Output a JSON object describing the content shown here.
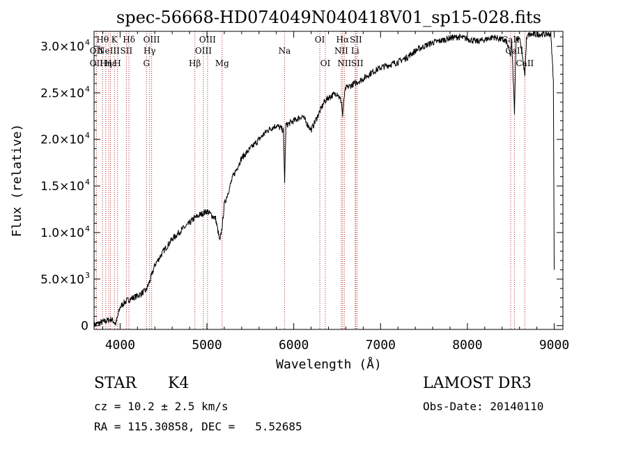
{
  "chart_data": {
    "type": "line",
    "title": "spec-56668-HD074049N040418V01_sp15-028.fits",
    "xlabel": "Wavelength (Å)",
    "ylabel": "Flux (relative)",
    "xlim": [
      3700,
      9100
    ],
    "ylim": [
      -400,
      31600
    ],
    "x_ticks": [
      {
        "value": 4000,
        "label": "4000"
      },
      {
        "value": 5000,
        "label": "5000"
      },
      {
        "value": 6000,
        "label": "6000"
      },
      {
        "value": 7000,
        "label": "7000"
      },
      {
        "value": 8000,
        "label": "8000"
      },
      {
        "value": 9000,
        "label": "9000"
      }
    ],
    "y_ticks": [
      {
        "value": 0,
        "mant": "0",
        "exp": ""
      },
      {
        "value": 5000,
        "mant": "5.0×10",
        "exp": "3"
      },
      {
        "value": 10000,
        "mant": "1.0×10",
        "exp": "4"
      },
      {
        "value": 15000,
        "mant": "1.5×10",
        "exp": "4"
      },
      {
        "value": 20000,
        "mant": "2.0×10",
        "exp": "4"
      },
      {
        "value": 25000,
        "mant": "2.5×10",
        "exp": "4"
      },
      {
        "value": 30000,
        "mant": "3.0×10",
        "exp": "4"
      }
    ],
    "series": [
      {
        "name": "spectrum",
        "x": [
          3700,
          3800,
          3900,
          3950,
          4000,
          4050,
          4100,
          4200,
          4300,
          4350,
          4400,
          4500,
          4600,
          4700,
          4800,
          4850,
          4900,
          5000,
          5100,
          5150,
          5180,
          5200,
          5300,
          5400,
          5500,
          5600,
          5700,
          5800,
          5880,
          5895,
          5910,
          6000,
          6100,
          6200,
          6300,
          6350,
          6400,
          6500,
          6550,
          6563,
          6580,
          6600,
          6700,
          6800,
          6900,
          7000,
          7100,
          7200,
          7300,
          7400,
          7500,
          7600,
          7700,
          7800,
          7900,
          8000,
          8100,
          8200,
          8300,
          8400,
          8450,
          8498,
          8510,
          8542,
          8560,
          8600,
          8662,
          8680,
          8700,
          8800,
          8900,
          8960,
          8990,
          9000
        ],
        "y": [
          100,
          400,
          700,
          200,
          2000,
          2500,
          2800,
          3200,
          3800,
          5000,
          6500,
          8000,
          9300,
          10200,
          11000,
          11500,
          11800,
          12300,
          11500,
          9000,
          11000,
          13000,
          16000,
          18000,
          19000,
          20000,
          21000,
          21500,
          21000,
          15500,
          21500,
          22000,
          22500,
          21000,
          23000,
          24000,
          24500,
          25000,
          24000,
          22500,
          24500,
          25500,
          26000,
          26500,
          27200,
          27700,
          28000,
          28300,
          28800,
          29500,
          30000,
          30400,
          30600,
          30900,
          31000,
          30800,
          30500,
          30700,
          31000,
          30700,
          30500,
          29000,
          30500,
          23000,
          30700,
          31000,
          27000,
          30700,
          31200,
          31300,
          31300,
          31300,
          26500,
          6000
        ]
      }
    ],
    "lines": [
      {
        "wave": 3727,
        "labels": [
          {
            "text": "OII",
            "row": 1
          },
          {
            "text": "OII",
            "row": 2
          }
        ]
      },
      {
        "wave": 3798,
        "labels": [
          {
            "text": "Hθ",
            "row": 0
          }
        ]
      },
      {
        "wave": 3835,
        "labels": [
          {
            "text": "Hη",
            "row": 2
          }
        ]
      },
      {
        "wave": 3869,
        "labels": [
          {
            "text": "NeIII",
            "row": 1
          }
        ]
      },
      {
        "wave": 3889,
        "labels": [
          {
            "text": "Hε",
            "row": 2
          }
        ]
      },
      {
        "wave": 3934,
        "labels": [
          {
            "text": "K",
            "row": 0
          }
        ]
      },
      {
        "wave": 3970,
        "labels": [
          {
            "text": "H",
            "row": 2
          }
        ]
      },
      {
        "wave": 4072,
        "labels": [
          {
            "text": "SII",
            "row": 1
          }
        ]
      },
      {
        "wave": 4102,
        "labels": [
          {
            "text": "Hδ",
            "row": 0
          }
        ]
      },
      {
        "wave": 4304,
        "labels": [
          {
            "text": "G",
            "row": 2
          }
        ]
      },
      {
        "wave": 4340,
        "labels": [
          {
            "text": "Hγ",
            "row": 1
          }
        ]
      },
      {
        "wave": 4363,
        "labels": [
          {
            "text": "OIII",
            "row": 0
          }
        ]
      },
      {
        "wave": 4861,
        "labels": [
          {
            "text": "Hβ",
            "row": 2
          }
        ]
      },
      {
        "wave": 4959,
        "labels": [
          {
            "text": "OIII",
            "row": 1
          }
        ]
      },
      {
        "wave": 5007,
        "labels": [
          {
            "text": "OIII",
            "row": 0
          }
        ]
      },
      {
        "wave": 5175,
        "labels": [
          {
            "text": "Mg",
            "row": 2
          }
        ]
      },
      {
        "wave": 5894,
        "labels": [
          {
            "text": "Na",
            "row": 1
          }
        ]
      },
      {
        "wave": 6300,
        "labels": [
          {
            "text": "OI",
            "row": 0
          }
        ]
      },
      {
        "wave": 6364,
        "labels": [
          {
            "text": "OI",
            "row": 2
          }
        ]
      },
      {
        "wave": 6548,
        "labels": [
          {
            "text": "NII",
            "row": 1
          }
        ]
      },
      {
        "wave": 6563,
        "labels": [
          {
            "text": "Hα",
            "row": 0
          }
        ]
      },
      {
        "wave": 6583,
        "labels": [
          {
            "text": "NII",
            "row": 2
          }
        ]
      },
      {
        "wave": 6707,
        "labels": [
          {
            "text": "Li",
            "row": 1
          }
        ]
      },
      {
        "wave": 6716,
        "labels": [
          {
            "text": "SII",
            "row": 0
          }
        ]
      },
      {
        "wave": 6731,
        "labels": [
          {
            "text": "SII",
            "row": 2
          }
        ]
      },
      {
        "wave": 8498,
        "labels": [
          {
            "text": "CaII",
            "row": 0
          }
        ]
      },
      {
        "wave": 8542,
        "labels": [
          {
            "text": "CaII",
            "row": 1
          }
        ]
      },
      {
        "wave": 8662,
        "labels": [
          {
            "text": "CaII",
            "row": 2
          }
        ]
      }
    ]
  },
  "footer": {
    "object_class": "STAR",
    "subclass": "K4",
    "survey": "LAMOST DR3",
    "redshift": "cz = 10.2 ± 2.5 km/s",
    "obs_date": "Obs-Date: 20140110",
    "coords": "RA = 115.30858, DEC =   5.52685"
  },
  "colors": {
    "line_marker": "#b22222",
    "spectrum": "#000000"
  }
}
